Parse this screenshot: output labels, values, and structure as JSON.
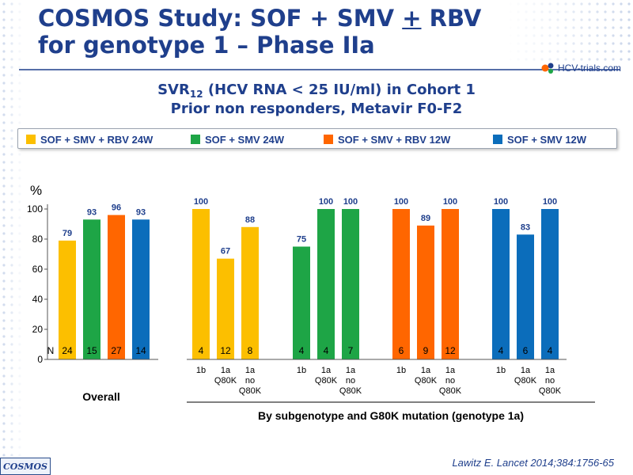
{
  "title": {
    "line1_prefix": "COSMOS Study: SOF + SMV ",
    "line1_underlined": "+",
    "line1_suffix": " RBV",
    "line2": "for genotype 1 – Phase IIa"
  },
  "logo": {
    "text": "HCV-trials.com",
    "icon": "hcv-trials-logo"
  },
  "subtitle": {
    "line1_prefix": "SVR",
    "line1_sub": "12",
    "line1_suffix": " (HCV RNA < 25 IU/ml) in Cohort 1",
    "line2": "Prior non responders, Metavir F0-F2"
  },
  "legend": [
    {
      "label": "SOF + SMV + RBV 24W",
      "color": "#fcbf00"
    },
    {
      "label": "SOF + SMV 24W",
      "color": "#1ea546"
    },
    {
      "label": "SOF + SMV + RBV 12W",
      "color": "#ff6600"
    },
    {
      "label": "SOF + SMV 12W",
      "color": "#0b6dbb"
    }
  ],
  "chart_data": {
    "type": "bar",
    "y_unit": "%",
    "ylim": [
      0,
      100
    ],
    "yticks": [
      0,
      20,
      40,
      60,
      80,
      100
    ],
    "n_label": "N",
    "colors": {
      "rbv24": "#fcbf00",
      "smv24": "#1ea546",
      "rbv12": "#ff6600",
      "smv12": "#0b6dbb"
    },
    "groups": [
      {
        "name": "Overall",
        "bars": [
          {
            "arm": "rbv24",
            "value": 79,
            "label": "79",
            "n": "24",
            "category": ""
          },
          {
            "arm": "smv24",
            "value": 93,
            "label": "93",
            "n": "15",
            "category": ""
          },
          {
            "arm": "rbv12",
            "value": 96,
            "label": "96",
            "n": "27",
            "category": ""
          },
          {
            "arm": "smv12",
            "value": 93,
            "label": "93",
            "n": "14",
            "category": ""
          }
        ]
      },
      {
        "name": "SOF + SMV + RBV 24W",
        "bars": [
          {
            "arm": "rbv24",
            "value": 100,
            "label": "100",
            "n": "4",
            "category": "1b"
          },
          {
            "arm": "rbv24",
            "value": 67,
            "label": "67",
            "n": "12",
            "category": "1a\nQ80K"
          },
          {
            "arm": "rbv24",
            "value": 88,
            "label": "88",
            "n": "8",
            "category": "1a\nno\nQ80K"
          }
        ]
      },
      {
        "name": "SOF + SMV 24W",
        "bars": [
          {
            "arm": "smv24",
            "value": 75,
            "label": "75",
            "n": "4",
            "category": "1b"
          },
          {
            "arm": "smv24",
            "value": 100,
            "label": "100",
            "n": "4",
            "category": "1a\nQ80K"
          },
          {
            "arm": "smv24",
            "value": 100,
            "label": "100",
            "n": "7",
            "category": "1a\nno\nQ80K"
          }
        ]
      },
      {
        "name": "SOF + SMV + RBV 12W",
        "bars": [
          {
            "arm": "rbv12",
            "value": 100,
            "label": "100",
            "n": "6",
            "category": "1b"
          },
          {
            "arm": "rbv12",
            "value": 89,
            "label": "89",
            "n": "9",
            "category": "1a\nQ80K"
          },
          {
            "arm": "rbv12",
            "value": 100,
            "label": "100",
            "n": "12",
            "category": "1a\nno\nQ80K"
          }
        ]
      },
      {
        "name": "SOF + SMV 12W",
        "bars": [
          {
            "arm": "smv12",
            "value": 100,
            "label": "100",
            "n": "4",
            "category": "1b"
          },
          {
            "arm": "smv12",
            "value": 83,
            "label": "83",
            "n": "6",
            "category": "1a\nQ80K"
          },
          {
            "arm": "smv12",
            "value": 100,
            "label": "100",
            "n": "4",
            "category": "1a\nno\nQ80K"
          }
        ]
      }
    ],
    "overall_label": "Overall",
    "subgroup_label": "By subgenotype and G80K mutation (genotype 1a)"
  },
  "footer": {
    "badge": "COSMOS",
    "citation": "Lawitz  E. Lancet 2014;384:1756-65"
  }
}
